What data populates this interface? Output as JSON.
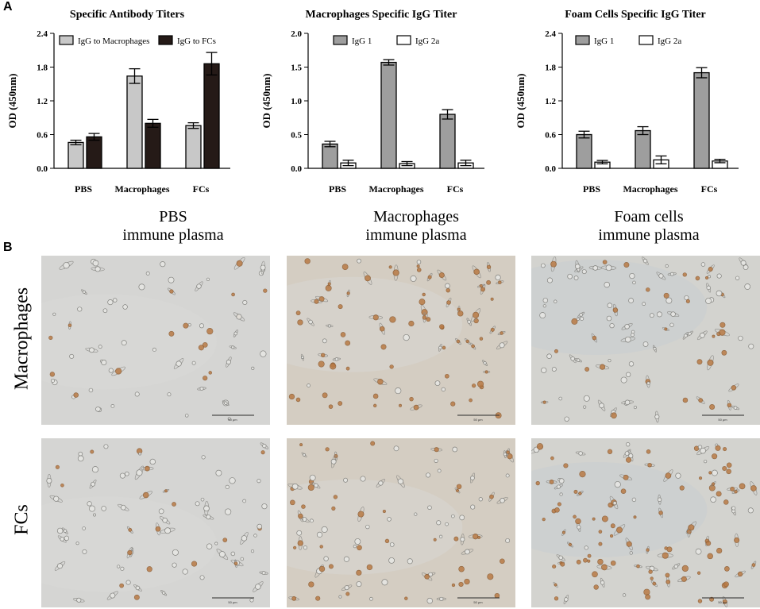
{
  "panel_labels": {
    "a": "A",
    "b": "B"
  },
  "colors": {
    "light_bar": "#c8c8c8",
    "dark_bar": "#251a17",
    "gray_bar": "#9e9e9e",
    "white_bar": "#ffffff",
    "pbs_bg": "#d5d5d3",
    "mac_bg": "#d4cdc2",
    "fc_bg": "#d3d3cf",
    "cell_stain": "#b87a45"
  },
  "chart_data": [
    {
      "type": "bar",
      "title": "Specific Antibody Titers",
      "ylabel": "OD (450nm)",
      "xlabel": "",
      "ylim": [
        0,
        2.4
      ],
      "yticks": [
        "0.0",
        "0.6",
        "1.2",
        "1.8",
        "2.4"
      ],
      "categories": [
        "PBS",
        "Macrophages",
        "FCs"
      ],
      "series": [
        {
          "name": "IgG to Macrophages",
          "values": [
            0.46,
            1.64,
            0.76
          ],
          "errors": [
            0.04,
            0.13,
            0.05
          ]
        },
        {
          "name": "IgG to FCs",
          "values": [
            0.56,
            0.8,
            1.86
          ],
          "errors": [
            0.06,
            0.07,
            0.2
          ]
        }
      ],
      "legend": "top",
      "grid": false
    },
    {
      "type": "bar",
      "title": "Macrophages Specific IgG Titer",
      "ylabel": "OD (450nm)",
      "xlabel": "",
      "ylim": [
        0,
        2.0
      ],
      "yticks": [
        "0.0",
        "0.5",
        "1.0",
        "1.5",
        "2.0"
      ],
      "categories": [
        "PBS",
        "Macrophages",
        "FCs"
      ],
      "series": [
        {
          "name": "IgG 1",
          "values": [
            0.36,
            1.57,
            0.8
          ],
          "errors": [
            0.04,
            0.04,
            0.07
          ]
        },
        {
          "name": "IgG 2a",
          "values": [
            0.08,
            0.07,
            0.08
          ],
          "errors": [
            0.04,
            0.03,
            0.04
          ]
        }
      ],
      "legend": "top",
      "grid": false
    },
    {
      "type": "bar",
      "title": "Foam Cells Specific IgG Titer",
      "ylabel": "OD (450nm)",
      "xlabel": "",
      "ylim": [
        0,
        2.4
      ],
      "yticks": [
        "0.0",
        "0.6",
        "1.2",
        "1.8",
        "2.4"
      ],
      "categories": [
        "PBS",
        "Macrophages",
        "FCs"
      ],
      "series": [
        {
          "name": "IgG 1",
          "values": [
            0.6,
            0.67,
            1.7
          ],
          "errors": [
            0.06,
            0.07,
            0.09
          ]
        },
        {
          "name": "IgG 2a",
          "values": [
            0.11,
            0.15,
            0.13
          ],
          "errors": [
            0.03,
            0.07,
            0.03
          ]
        }
      ],
      "legend": "top",
      "grid": false
    }
  ],
  "micrographs": {
    "columns": [
      {
        "line1": "PBS",
        "line2": "immune plasma"
      },
      {
        "line1": "Macrophages",
        "line2": "immune plasma"
      },
      {
        "line1": "Foam cells",
        "line2": "immune plasma"
      }
    ],
    "rows": [
      "Macrophages",
      "FCs"
    ],
    "scale_bar": "50 μm"
  }
}
